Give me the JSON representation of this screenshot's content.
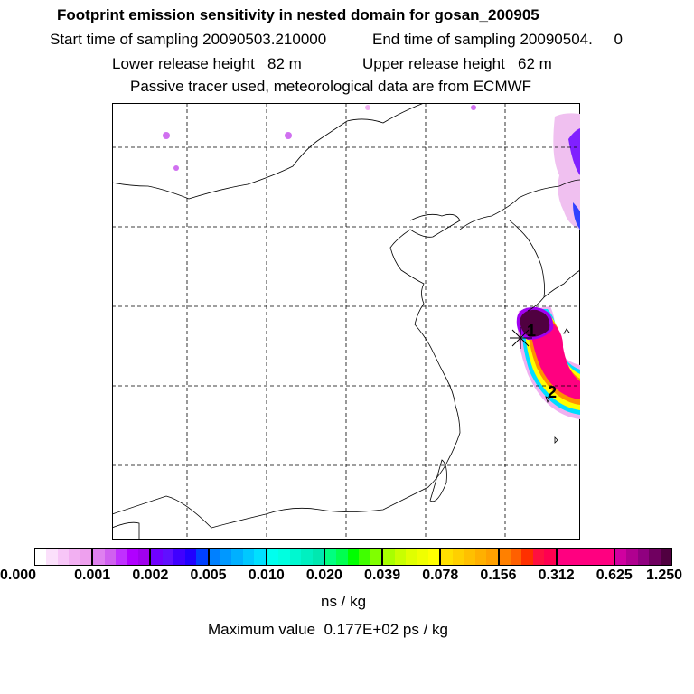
{
  "title": "Footprint emission sensitivity in nested domain for gosan_200905",
  "line2_start": "Start time of sampling 20090503.210000",
  "line2_end": "End time of sampling 20090504.     0",
  "line3_lower": "Lower release height   82 m",
  "line3_upper": "Upper release height   62 m",
  "line4": "Passive tracer used, meteorological data are from ECMWF",
  "units": "ns / kg",
  "max_value": "Maximum value  0.177E+02 ps / kg",
  "markers": [
    "1",
    "2"
  ],
  "chart_data": {
    "type": "heatmap",
    "title": "Footprint emission sensitivity in nested domain for gosan_200905",
    "colorbar_ticks": [
      "0.000",
      "0.001",
      "0.002",
      "0.005",
      "0.010",
      "0.020",
      "0.039",
      "0.078",
      "0.156",
      "0.312",
      "0.625",
      "1.250"
    ],
    "colorbar_groups": [
      [
        "#ffffff",
        "#fbe0fb",
        "#f7c6f7",
        "#f2b0f2",
        "#eea0ee"
      ],
      [
        "#df80f0",
        "#d060f0",
        "#c030ff",
        "#b000ff",
        "#a000ee"
      ],
      [
        "#7000ff",
        "#6010ff",
        "#4000ff",
        "#2000ff",
        "#0040ff"
      ],
      [
        "#0080ff",
        "#0098ff",
        "#00b0ff",
        "#00c8ff",
        "#00e0ff"
      ],
      [
        "#00ffee",
        "#00ffe0",
        "#00f8d0",
        "#00f0c0",
        "#00e8b0"
      ],
      [
        "#00ff80",
        "#00ff50",
        "#00ff00",
        "#40ff00",
        "#80ff00"
      ],
      [
        "#a8ff00",
        "#c8ff00",
        "#e0ff00",
        "#f0ff00",
        "#ffff00"
      ],
      [
        "#ffe000",
        "#ffd000",
        "#ffc000",
        "#ffb000",
        "#ffa000"
      ],
      [
        "#ff8000",
        "#ff6000",
        "#ff3000",
        "#ff1040",
        "#ff0050"
      ],
      [
        "#ff0080",
        "#ff0080",
        "#ff0080",
        "#ff0080",
        "#ff0080"
      ],
      [
        "#d000a0",
        "#b00090",
        "#900080",
        "#700060",
        "#500040"
      ]
    ],
    "unit": "ns / kg",
    "max": "0.177E+02 ps / kg"
  }
}
